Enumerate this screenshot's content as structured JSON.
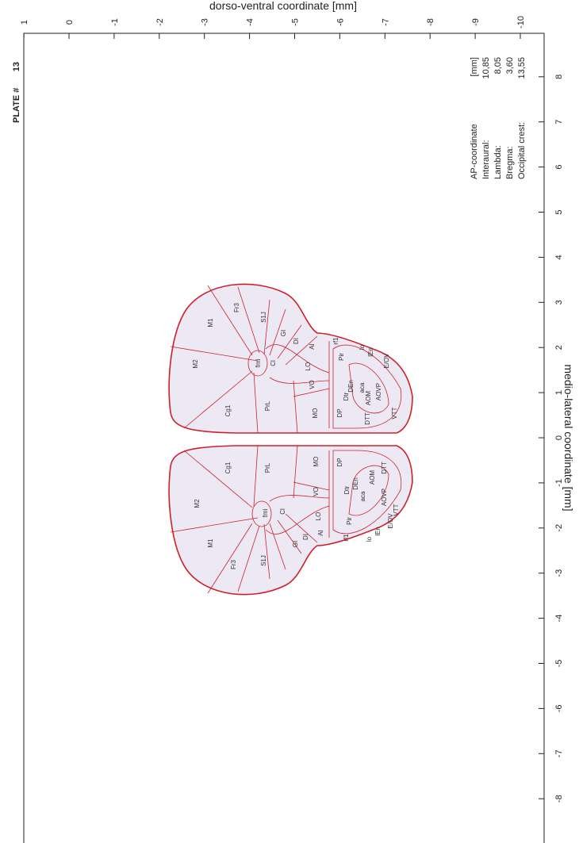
{
  "top_axis": {
    "label": "dorso-ventral coordinate [mm]",
    "ticks": [
      1,
      0,
      -1,
      -2,
      -3,
      -4,
      -5,
      -6,
      -7,
      -8,
      -9,
      -10
    ]
  },
  "right_axis": {
    "label": "medio-lateral coordinate [mm]",
    "ticks": [
      8,
      7,
      6,
      5,
      4,
      3,
      2,
      1,
      0,
      -1,
      -2,
      -3,
      -4,
      -5,
      -6,
      -7,
      -8
    ]
  },
  "plate": {
    "label": "PLATE #",
    "number": "13"
  },
  "info": [
    [
      "AP-coordinate",
      "[mm]"
    ],
    [
      "Interaural:",
      "10,85"
    ],
    [
      "Lambda:",
      "8,05"
    ],
    [
      "Bregma:",
      "3,60"
    ],
    [
      "Occipital crest:",
      "13,55"
    ]
  ],
  "regions": [
    "M1",
    "Fr3",
    "S1J",
    "GI",
    "DI",
    "AI",
    "fmi",
    "Cl",
    "M2",
    "LO",
    "VO",
    "Cg1",
    "PrL",
    "MO",
    "DP",
    "rf1",
    "Pir",
    "lo",
    "lEn",
    "E/OV",
    "DEn",
    "Dtr",
    "aca",
    "AOM",
    "AOVP",
    "VTT",
    "DTT",
    "Cg1",
    "PrL",
    "M2",
    "M1",
    "Fr3",
    "S1J",
    "GI",
    "DI",
    "AI",
    "fmi",
    "Cl",
    "LO",
    "VO",
    "MO",
    "DP",
    "rf1",
    "Pir",
    "lo",
    "lEn",
    "E/OV",
    "DEn",
    "Dtr",
    "aca",
    "AOM",
    "AOVP",
    "VTT",
    "DTT"
  ]
}
